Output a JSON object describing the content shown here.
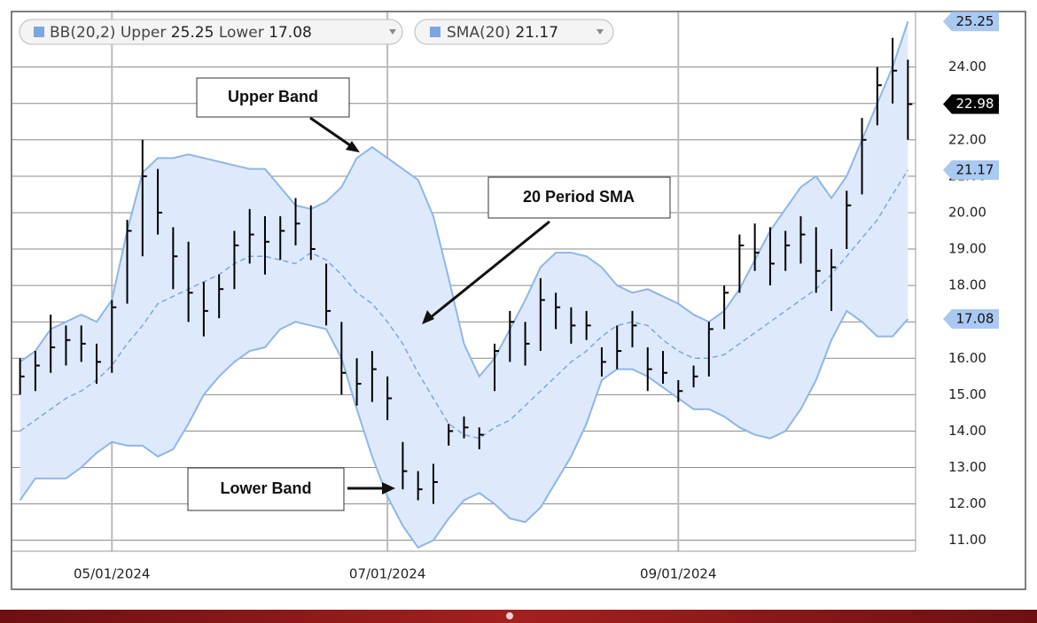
{
  "chart_data": {
    "type": "ohlc",
    "indicator": "BB(20,2)",
    "categories": [
      null,
      null,
      null,
      null,
      null,
      null,
      "05/01/2024",
      null,
      null,
      null,
      null,
      null,
      null,
      null,
      null,
      null,
      null,
      null,
      null,
      null,
      null,
      null,
      null,
      null,
      "07/01/2024",
      null,
      null,
      null,
      null,
      null,
      null,
      null,
      null,
      null,
      null,
      null,
      null,
      null,
      null,
      null,
      null,
      null,
      null,
      "09/01/2024",
      null,
      null,
      null,
      null,
      null,
      null,
      null,
      null,
      null,
      null,
      null,
      null,
      null,
      null,
      null
    ],
    "ohlc": {
      "color": "#000000",
      "high": [
        16.0,
        16.2,
        17.2,
        16.9,
        16.9,
        16.4,
        17.6,
        19.8,
        22.0,
        21.2,
        19.6,
        19.2,
        18.1,
        18.3,
        19.5,
        20.1,
        19.9,
        19.9,
        20.4,
        20.2,
        18.6,
        17.0,
        16.0,
        16.2,
        15.5,
        13.7,
        12.9,
        13.1,
        14.2,
        14.4,
        14.1,
        16.4,
        17.3,
        17.0,
        18.2,
        17.8,
        17.4,
        17.3,
        16.3,
        16.9,
        17.3,
        16.3,
        16.2,
        15.4,
        15.8,
        17.0,
        18.0,
        19.4,
        19.7,
        19.6,
        19.5,
        19.9,
        19.6,
        19.0,
        20.6,
        22.6,
        24.0,
        24.8,
        24.2
      ],
      "low": [
        15.0,
        15.1,
        15.6,
        15.8,
        15.9,
        15.3,
        15.6,
        17.5,
        18.8,
        19.4,
        17.9,
        17.0,
        16.6,
        17.1,
        17.9,
        18.6,
        18.3,
        18.7,
        19.1,
        18.7,
        16.9,
        15.0,
        14.7,
        14.8,
        14.3,
        12.4,
        12.1,
        12.0,
        13.6,
        13.8,
        13.5,
        15.1,
        15.9,
        15.8,
        16.2,
        16.8,
        16.4,
        16.5,
        15.5,
        15.7,
        16.3,
        15.1,
        15.3,
        14.8,
        15.2,
        15.5,
        16.8,
        17.8,
        18.4,
        18.0,
        18.4,
        18.6,
        17.8,
        17.3,
        19.0,
        20.5,
        22.4,
        23.0,
        22.0
      ],
      "close": [
        15.5,
        15.8,
        16.3,
        16.5,
        16.4,
        15.9,
        17.4,
        19.5,
        21.0,
        20.0,
        18.8,
        17.8,
        17.3,
        17.9,
        19.1,
        19.4,
        19.2,
        19.5,
        19.7,
        19.0,
        17.3,
        15.6,
        15.3,
        15.7,
        14.9,
        12.9,
        12.4,
        12.6,
        14.0,
        14.1,
        13.9,
        16.2,
        17.0,
        16.4,
        17.6,
        17.4,
        16.9,
        16.9,
        15.9,
        16.2,
        16.9,
        15.7,
        15.6,
        15.1,
        15.5,
        16.8,
        17.8,
        19.1,
        18.9,
        18.6,
        19.1,
        19.4,
        18.4,
        18.5,
        20.2,
        22.0,
        23.5,
        23.9,
        22.98
      ]
    },
    "series": [
      {
        "name": "Upper",
        "color": "#8fb6e8",
        "values": [
          15.9,
          16.2,
          16.8,
          17.0,
          17.2,
          17.0,
          17.6,
          19.5,
          21.1,
          21.5,
          21.5,
          21.6,
          21.5,
          21.4,
          21.3,
          21.2,
          21.2,
          20.7,
          20.2,
          20.1,
          20.3,
          20.7,
          21.5,
          21.8,
          21.5,
          21.2,
          20.9,
          19.9,
          18.2,
          16.4,
          15.5,
          16.0,
          16.8,
          17.6,
          18.5,
          18.9,
          18.9,
          18.8,
          18.5,
          18.0,
          17.8,
          17.9,
          17.7,
          17.5,
          17.2,
          17.0,
          17.3,
          17.9,
          18.7,
          19.5,
          20.1,
          20.7,
          21.0,
          20.4,
          21.0,
          22.0,
          23.0,
          24.0,
          25.25
        ]
      },
      {
        "name": "Lower",
        "color": "#8fb6e8",
        "values": [
          12.1,
          12.7,
          12.7,
          12.7,
          13.0,
          13.4,
          13.7,
          13.6,
          13.6,
          13.3,
          13.5,
          14.2,
          15.0,
          15.5,
          15.9,
          16.2,
          16.3,
          16.8,
          17.0,
          16.9,
          16.8,
          16.0,
          14.6,
          13.3,
          12.2,
          11.4,
          10.8,
          11.0,
          11.6,
          12.1,
          12.3,
          12.0,
          11.6,
          11.5,
          11.9,
          12.6,
          13.3,
          14.2,
          15.4,
          15.7,
          15.7,
          15.5,
          15.2,
          14.9,
          14.6,
          14.6,
          14.4,
          14.1,
          13.9,
          13.8,
          14.0,
          14.6,
          15.4,
          16.5,
          17.3,
          17.0,
          16.6,
          16.6,
          17.08
        ]
      },
      {
        "name": "SMA(20)",
        "color": "#7ba6e0",
        "values": [
          14.0,
          14.3,
          14.6,
          14.9,
          15.1,
          15.4,
          15.8,
          16.4,
          16.9,
          17.5,
          17.7,
          17.9,
          18.1,
          18.3,
          18.6,
          18.8,
          18.8,
          18.7,
          18.6,
          18.9,
          18.7,
          18.3,
          17.8,
          17.5,
          17.0,
          16.4,
          15.6,
          14.9,
          14.2,
          13.9,
          13.8,
          14.1,
          14.3,
          14.7,
          15.1,
          15.5,
          15.9,
          16.2,
          16.6,
          16.9,
          17.0,
          16.9,
          16.5,
          16.2,
          16.0,
          16.0,
          16.1,
          16.4,
          16.7,
          17.0,
          17.3,
          17.6,
          17.9,
          18.3,
          18.8,
          19.3,
          19.8,
          20.5,
          21.17
        ]
      }
    ],
    "band_fill": "#deeafb",
    "ylim": [
      10.7,
      25.5
    ],
    "yticks": [
      {
        "value": 11,
        "label": "11.00"
      },
      {
        "value": 12,
        "label": "12.00"
      },
      {
        "value": 13,
        "label": "13.00"
      },
      {
        "value": 14,
        "label": "14.00"
      },
      {
        "value": 15,
        "label": "15.00"
      },
      {
        "value": 16,
        "label": "16.00"
      },
      {
        "value": 17,
        "label": "17.00"
      },
      {
        "value": 18,
        "label": "18.00"
      },
      {
        "value": 19,
        "label": "19.00"
      },
      {
        "value": 20,
        "label": "20.00"
      },
      {
        "value": 21,
        "label": "21.00"
      },
      {
        "value": 22,
        "label": "22.00"
      },
      {
        "value": 23,
        "label": "23.00"
      },
      {
        "value": 24,
        "label": "24.00"
      }
    ],
    "grid": true,
    "annotations": [
      "Upper Band",
      "20 Period SMA",
      "Lower Band"
    ]
  }
}
